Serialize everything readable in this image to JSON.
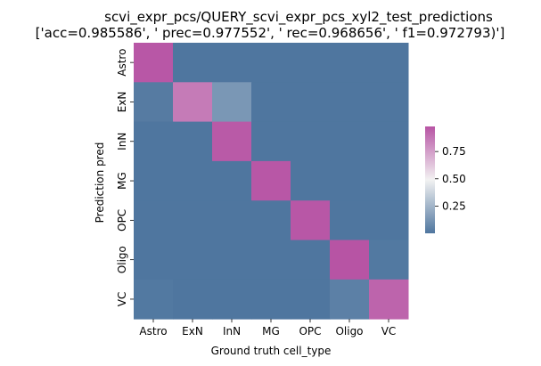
{
  "chart_data": {
    "type": "heatmap",
    "title": "scvi_expr_pcs/QUERY_scvi_expr_pcs_xyl2_test_predictions",
    "subtitle": "['acc=0.985586', '  prec=0.977552', ' rec=0.968656', ' f1=0.972793)']",
    "xlabel": "Ground truth cell_type",
    "ylabel": "Prediction pred",
    "x_categories": [
      "Astro",
      "ExN",
      "InN",
      "MG",
      "OPC",
      "Oligo",
      "VC"
    ],
    "y_categories": [
      "Astro",
      "ExN",
      "InN",
      "MG",
      "OPC",
      "Oligo",
      "VC"
    ],
    "values": [
      [
        0.97,
        0.0,
        0.0,
        0.0,
        0.0,
        0.0,
        0.0
      ],
      [
        0.02,
        0.86,
        0.13,
        0.0,
        0.0,
        0.0,
        0.0
      ],
      [
        0.0,
        0.0,
        0.96,
        0.0,
        0.0,
        0.0,
        0.0
      ],
      [
        0.0,
        0.0,
        0.0,
        0.97,
        0.0,
        0.0,
        0.0
      ],
      [
        0.0,
        0.0,
        0.0,
        0.0,
        0.97,
        0.0,
        0.0
      ],
      [
        0.0,
        0.0,
        0.0,
        0.0,
        0.0,
        0.98,
        0.01
      ],
      [
        0.01,
        0.0,
        0.0,
        0.0,
        0.0,
        0.04,
        0.93
      ]
    ],
    "colorbar": {
      "ticks": [
        0.25,
        0.5,
        0.75
      ],
      "tick_labels": [
        "0.25",
        "0.50",
        "0.75"
      ],
      "range": [
        0.0,
        0.98
      ]
    },
    "colormap": [
      "#4f769f",
      "#f2f2f2",
      "#b754a4"
    ]
  }
}
